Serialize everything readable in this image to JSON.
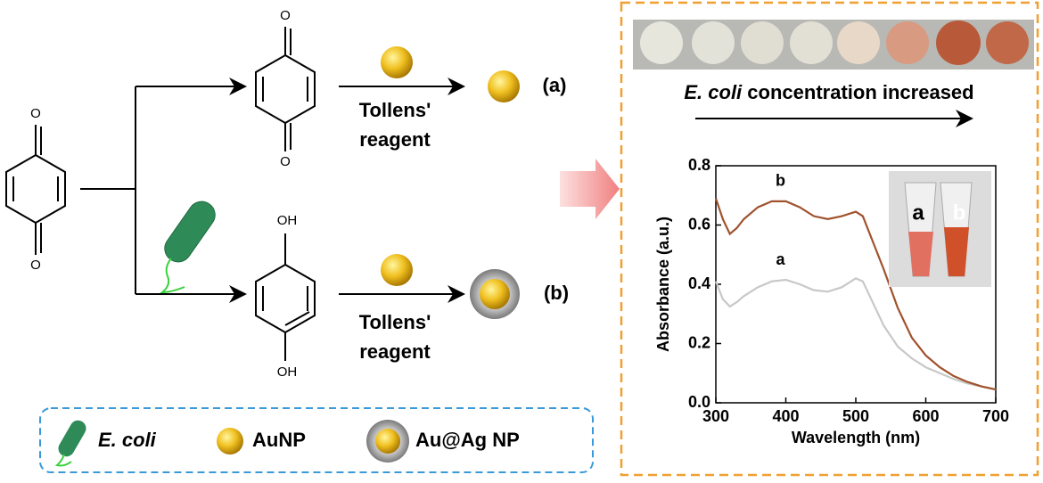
{
  "scheme": {
    "oxygen_top": "O",
    "oxygen_bottom": "O",
    "oxygen_top2": "O",
    "oxygen_bottom2": "O",
    "hydroxyl_top": "OH",
    "hydroxyl_bottom": "OH",
    "reagent_a": [
      "Tollens'",
      "reagent"
    ],
    "reagent_b": [
      "Tollens'",
      "reagent"
    ],
    "label_a": "(a)",
    "label_b": "(b)"
  },
  "legend": {
    "items": [
      "E. coli",
      "AuNP",
      "Au@Ag NP"
    ]
  },
  "panel": {
    "caption_italic": "E. coli",
    "caption_rest": "concentration increased",
    "inset_labels": [
      "a",
      "b"
    ]
  },
  "chart_data": {
    "type": "line",
    "xlabel": "Wavelength (nm)",
    "ylabel": "Absorbance (a.u.)",
    "x": [
      300,
      310,
      320,
      330,
      340,
      360,
      380,
      400,
      420,
      440,
      460,
      480,
      500,
      510,
      520,
      540,
      560,
      580,
      600,
      620,
      640,
      660,
      680,
      700
    ],
    "series": [
      {
        "name": "a",
        "color": "#c8c8c8",
        "values": [
          0.41,
          0.35,
          0.325,
          0.34,
          0.36,
          0.39,
          0.41,
          0.415,
          0.4,
          0.38,
          0.375,
          0.39,
          0.42,
          0.41,
          0.36,
          0.26,
          0.19,
          0.15,
          0.12,
          0.1,
          0.08,
          0.065,
          0.055,
          0.045
        ]
      },
      {
        "name": "b",
        "color": "#a0522d",
        "values": [
          0.69,
          0.62,
          0.57,
          0.59,
          0.62,
          0.66,
          0.68,
          0.68,
          0.66,
          0.63,
          0.62,
          0.63,
          0.645,
          0.63,
          0.57,
          0.45,
          0.32,
          0.22,
          0.16,
          0.12,
          0.09,
          0.07,
          0.055,
          0.045
        ]
      }
    ],
    "xlim": [
      300,
      700
    ],
    "xticks": [
      300,
      400,
      500,
      600,
      700
    ],
    "ylim": [
      0,
      0.8
    ],
    "yticks": [
      {
        "value": 0,
        "label": "0.0"
      },
      0.2,
      0.4,
      0.6,
      0.8
    ]
  }
}
